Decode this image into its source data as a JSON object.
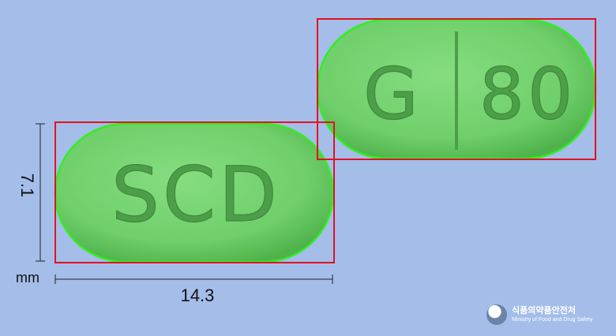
{
  "pills": {
    "front_imprint": "SCD",
    "back_imprint_left": "G",
    "back_imprint_right": "80",
    "pill_color": "#6fcf6a",
    "box_color": "#e0141e",
    "edge_color": "#33ee22"
  },
  "dimensions": {
    "height": "7.1",
    "width": "14.3",
    "unit": "mm"
  },
  "logo": {
    "korean": "식품의약품안전처",
    "english": "Ministry of Food and Drug Safety"
  }
}
